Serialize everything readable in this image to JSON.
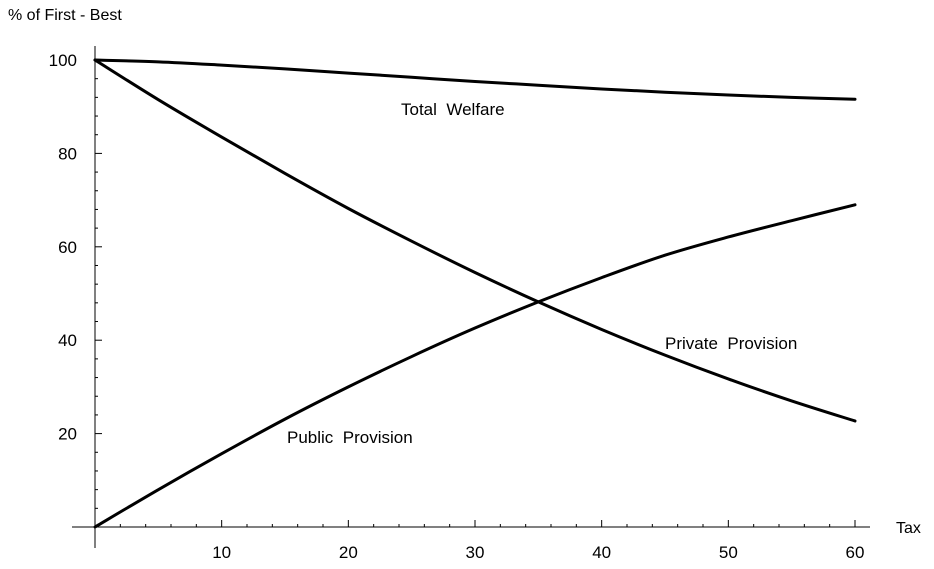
{
  "chart_data": {
    "type": "line",
    "title": "",
    "ylabel": "% of First - Best",
    "xlabel": "Tax",
    "xlim": [
      0,
      60
    ],
    "ylim": [
      0,
      100
    ],
    "xticks_major": [
      10,
      20,
      30,
      40,
      50,
      60
    ],
    "yticks_major": [
      20,
      40,
      60,
      80,
      100
    ],
    "grid": false,
    "legend": "none",
    "x": [
      0,
      5,
      10,
      15,
      20,
      25,
      30,
      35,
      40,
      45,
      50,
      55,
      60
    ],
    "series": [
      {
        "name": "Total  Welfare",
        "color": "#000000",
        "values": [
          100,
          99.6,
          98.9,
          98.1,
          97.2,
          96.3,
          95.4,
          94.6,
          93.8,
          93.1,
          92.5,
          92.0,
          91.6
        ]
      },
      {
        "name": "Private  Provision",
        "color": "#000000",
        "values": [
          100,
          91.5,
          83.5,
          75.7,
          68.2,
          61.2,
          54.5,
          48.2,
          42.3,
          36.8,
          31.7,
          27.0,
          22.7
        ]
      },
      {
        "name": "Public  Provision",
        "color": "#000000",
        "values": [
          0,
          8.0,
          15.7,
          23.1,
          30.0,
          36.5,
          42.6,
          48.2,
          53.4,
          58.2,
          62.1,
          65.6,
          69.0
        ]
      }
    ]
  }
}
